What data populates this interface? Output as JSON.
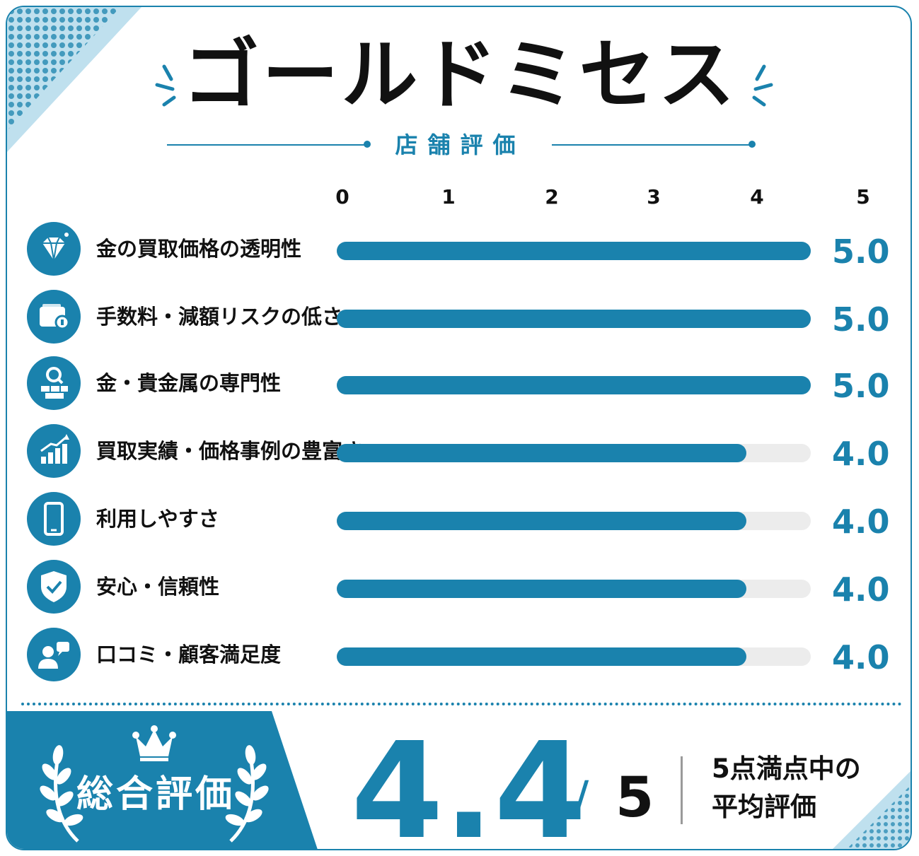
{
  "title": "ゴールドミセス",
  "subtitle": "店舗評価",
  "colors": {
    "accent": "#1a82ad",
    "track": "#ececec",
    "text": "#111111"
  },
  "chart_data": {
    "type": "bar",
    "orientation": "horizontal",
    "xlim": [
      0,
      5
    ],
    "ticks": [
      "0",
      "1",
      "2",
      "3",
      "4",
      "5"
    ],
    "categories": [
      "金の買取価格の透明性",
      "手数料・減額リスクの低さ",
      "金・貴金属の専門性",
      "買取実績・価格事例の豊富さ",
      "利用しやすさ",
      "安心・信頼性",
      "口コミ・顧客満足度"
    ],
    "values": [
      5.0,
      5.0,
      5.0,
      4.0,
      4.0,
      4.0,
      4.0
    ],
    "value_labels": [
      "5.0",
      "5.0",
      "5.0",
      "4.0",
      "4.0",
      "4.0",
      "4.0"
    ],
    "icons": [
      "diamond-icon",
      "wallet-icon",
      "gold-bars-expert-icon",
      "growth-chart-icon",
      "smartphone-icon",
      "shield-check-icon",
      "customer-review-icon"
    ],
    "grid": false,
    "legend": "none"
  },
  "summary": {
    "label": "総合評価",
    "score": "4.4",
    "slash": "/",
    "max": "5",
    "note_line1": "5点満点中の",
    "note_line2": "平均評価",
    "icons": [
      "crown-icon",
      "laurel-icon"
    ]
  }
}
